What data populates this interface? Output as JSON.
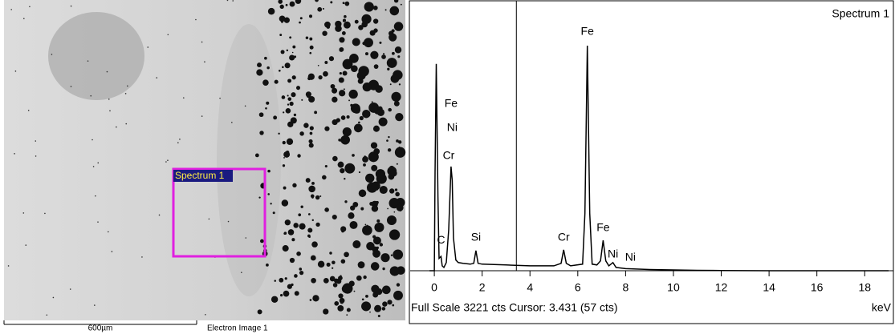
{
  "image": {
    "region_label": "Spectrum 1",
    "scale_bar": "600µm",
    "caption": "Electron Image 1"
  },
  "chart_data": {
    "type": "line",
    "title": "Spectrum 1",
    "x_label": "keV",
    "footer": "Full Scale 3221 cts Cursor: 3.431  (57 cts)",
    "cursor_x": 3.431,
    "color": "#000000",
    "x": [
      -0.2,
      0,
      0.03,
      0.08,
      0.15,
      0.2,
      0.28,
      0.33,
      0.4,
      0.5,
      0.6,
      0.7,
      0.75,
      0.8,
      0.9,
      1.0,
      1.2,
      1.5,
      1.65,
      1.74,
      1.83,
      2.0,
      3,
      4,
      5,
      5.3,
      5.41,
      5.52,
      5.7,
      6.2,
      6.3,
      6.4,
      6.5,
      6.6,
      6.8,
      6.95,
      7.06,
      7.17,
      7.3,
      7.47,
      7.6,
      8,
      9,
      10,
      11,
      12,
      14,
      16,
      19
    ],
    "values": [
      0,
      0,
      1200,
      2520,
      900,
      150,
      175,
      60,
      40,
      100,
      500,
      1270,
      1100,
      400,
      130,
      100,
      90,
      80,
      90,
      245,
      90,
      80,
      70,
      60,
      60,
      90,
      255,
      90,
      60,
      80,
      700,
      2743,
      700,
      80,
      70,
      120,
      370,
      120,
      60,
      100,
      40,
      25,
      15,
      10,
      5,
      3,
      0,
      0,
      0
    ],
    "xlim": [
      -1.01,
      19.2
    ],
    "ylim": [
      0,
      3221
    ],
    "xticks": [
      0,
      2,
      4,
      6,
      8,
      10,
      12,
      14,
      16,
      18
    ],
    "annotations": [
      {
        "text": "Fe",
        "x": 0.7,
        "y": 2030
      },
      {
        "text": "Ni",
        "x": 0.75,
        "y": 1737
      },
      {
        "text": "Cr",
        "x": 0.6,
        "y": 1396
      },
      {
        "text": "C",
        "x": 0.28,
        "y": 370
      },
      {
        "text": "Si",
        "x": 1.74,
        "y": 400
      },
      {
        "text": "Cr",
        "x": 5.41,
        "y": 400
      },
      {
        "text": "Fe",
        "x": 6.4,
        "y": 2910
      },
      {
        "text": "Fe",
        "x": 7.06,
        "y": 517
      },
      {
        "text": "Ni",
        "x": 7.47,
        "y": 195
      },
      {
        "text": "Ni",
        "x": 8.2,
        "y": 156
      }
    ]
  }
}
